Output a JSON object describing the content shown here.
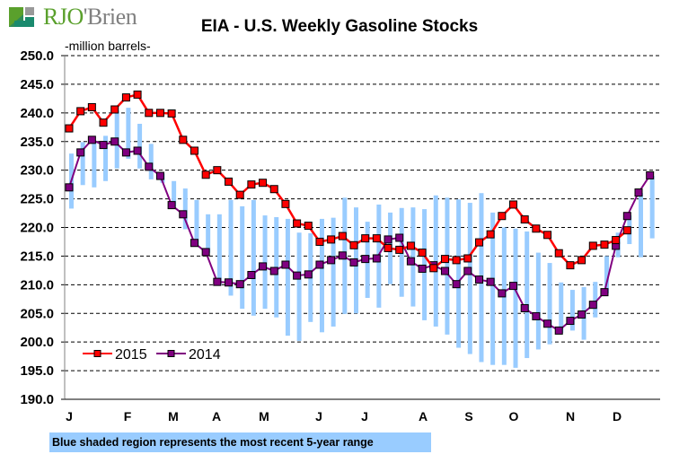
{
  "brand": {
    "name_part1": "RJO",
    "name_part2": "'Brien",
    "logo_colors": {
      "green": "#5aa02c",
      "gray": "#999999",
      "teal": "#1a8a6e"
    }
  },
  "note": "Blue shaded region represents the most recent 5-year range",
  "chart_data": {
    "type": "line",
    "title": "EIA - U.S. Weekly Gasoline Stocks",
    "ylabel": "-million barrels-",
    "xlabel": "",
    "ylim": [
      190,
      250
    ],
    "yticks": [
      "250.0",
      "245.0",
      "240.0",
      "235.0",
      "230.0",
      "225.0",
      "220.0",
      "215.0",
      "210.0",
      "205.0",
      "200.0",
      "195.0",
      "190.0"
    ],
    "ytick_values": [
      250,
      245,
      240,
      235,
      230,
      225,
      220,
      215,
      210,
      205,
      200,
      195,
      190
    ],
    "xticks": [
      "J",
      "F",
      "M",
      "A",
      "M",
      "J",
      "J",
      "A",
      "S",
      "O",
      "N",
      "D"
    ],
    "weeks": 52,
    "grid": "horizontal dashed",
    "legend_position": "bottom-left",
    "series": [
      {
        "name": "2015",
        "color": "#ff0000",
        "marker_color": "#ff0000",
        "values": [
          237.3,
          240.3,
          241.0,
          238.3,
          240.6,
          242.7,
          243.2,
          240.0,
          240.0,
          239.9,
          235.3,
          233.4,
          229.2,
          230.0,
          228.0,
          225.7,
          227.5,
          227.8,
          226.7,
          224.1,
          220.7,
          220.3,
          217.5,
          217.9,
          218.5,
          216.9,
          218.1,
          218.1,
          216.4,
          216.1,
          216.8,
          215.6,
          212.9,
          214.5,
          214.3,
          214.6,
          217.4,
          218.8,
          222.0,
          224.0,
          221.4,
          219.8,
          218.7,
          215.5,
          213.4,
          214.3,
          216.8,
          217.0,
          217.8,
          219.5
        ]
      },
      {
        "name": "2014",
        "color": "#800080",
        "marker_color": "#800080",
        "values": [
          227.0,
          233.1,
          235.3,
          234.4,
          235.0,
          233.1,
          233.4,
          230.6,
          229.0,
          223.9,
          222.3,
          217.3,
          215.7,
          210.5,
          210.4,
          210.1,
          211.7,
          213.2,
          212.4,
          213.5,
          211.6,
          211.8,
          213.5,
          214.3,
          215.1,
          213.9,
          214.5,
          214.6,
          217.9,
          218.2,
          214.1,
          212.8,
          213.4,
          212.4,
          210.1,
          212.4,
          210.9,
          210.5,
          208.5,
          209.8,
          205.9,
          204.5,
          203.2,
          202.0,
          203.7,
          204.8,
          206.5,
          208.7,
          216.8,
          222.0,
          226.1,
          229.1
        ]
      }
    ],
    "range_5yr": {
      "name": "5-year range",
      "color": "#99ccff",
      "high": [
        232.9,
        234.9,
        235.2,
        236.0,
        240.4,
        240.9,
        238.1,
        234.6,
        229.4,
        228.1,
        226.8,
        224.8,
        222.3,
        222.3,
        224.8,
        223.7,
        224.8,
        222.1,
        221.8,
        221.5,
        219.1,
        219.0,
        221.5,
        221.7,
        225.2,
        223.5,
        221.0,
        224.0,
        222.6,
        223.4,
        223.5,
        223.2,
        225.6,
        225.2,
        224.9,
        224.3,
        226.0,
        222.6,
        220.0,
        219.8,
        219.3,
        215.6,
        213.8,
        210.4,
        209.1,
        209.6,
        210.5,
        215.0,
        219.1,
        222.1,
        226.0,
        229.0
      ],
      "low": [
        223.3,
        227.4,
        227.0,
        228.1,
        230.3,
        232.0,
        230.3,
        228.4,
        227.8,
        223.6,
        219.7,
        216.9,
        215.6,
        209.9,
        208.1,
        205.8,
        204.6,
        205.8,
        204.3,
        201.1,
        200.2,
        203.5,
        201.7,
        202.7,
        204.9,
        205.0,
        207.7,
        206.0,
        210.1,
        207.9,
        206.2,
        203.8,
        202.7,
        201.3,
        199.0,
        197.9,
        196.5,
        196.0,
        196.0,
        195.5,
        197.2,
        198.7,
        199.6,
        201.6,
        202.0,
        200.4,
        204.3,
        208.5,
        214.8,
        217.1,
        214.8,
        218.1
      ]
    }
  }
}
